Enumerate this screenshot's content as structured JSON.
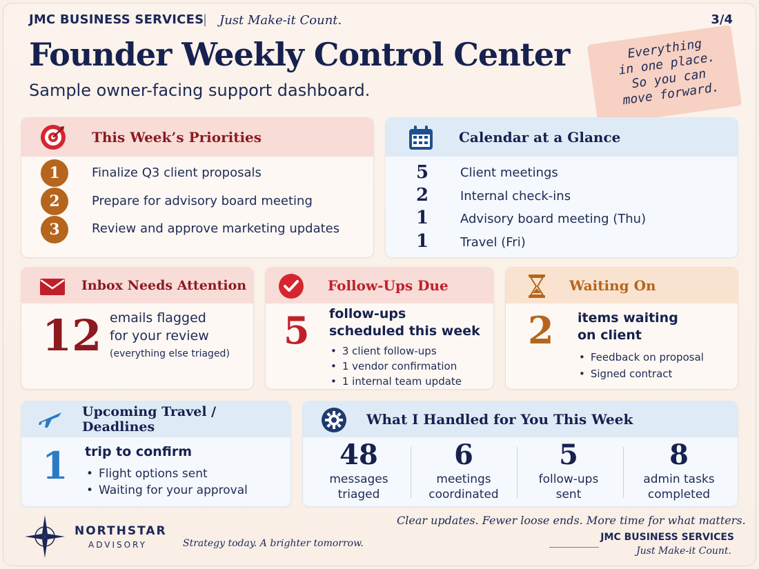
{
  "header": {
    "brand": "JMC BUSINESS SERVICES",
    "separator": "|",
    "tagline": "Just Make-it Count.",
    "page": "3/4",
    "title": "Founder Weekly Control Center",
    "subtitle": "Sample owner-facing support dashboard.",
    "sticky_note": "Everything\nin one place.\nSo you can\nmove forward."
  },
  "priorities": {
    "title": "This Week’s Priorities",
    "icon": "target-icon",
    "items": [
      {
        "num": "1",
        "text": "Finalize Q3 client proposals"
      },
      {
        "num": "2",
        "text": "Prepare for advisory board meeting"
      },
      {
        "num": "3",
        "text": "Review and approve marketing updates"
      }
    ]
  },
  "calendar": {
    "title": "Calendar at a Glance",
    "icon": "calendar-icon",
    "items": [
      {
        "count": "5",
        "text": "Client meetings"
      },
      {
        "count": "2",
        "text": "Internal check-ins"
      },
      {
        "count": "1",
        "text": "Advisory board meeting (Thu)"
      },
      {
        "count": "1",
        "text": "Travel (Fri)"
      }
    ]
  },
  "inbox": {
    "title": "Inbox Needs Attention",
    "icon": "envelope-icon",
    "count": "12",
    "line1": "emails flagged",
    "line2": "for your review",
    "note": "(everything else triaged)"
  },
  "followups": {
    "title": "Follow-Ups Due",
    "icon": "check-circle-icon",
    "count": "5",
    "line1": "follow-ups",
    "line2": "scheduled this week",
    "bullets": [
      "3 client follow-ups",
      "1 vendor confirmation",
      "1 internal team update"
    ]
  },
  "waiting": {
    "title": "Waiting On",
    "icon": "hourglass-icon",
    "count": "2",
    "line1": "items waiting",
    "line2": "on client",
    "bullets": [
      "Feedback on proposal",
      "Signed contract"
    ]
  },
  "travel": {
    "title": "Upcoming Travel / Deadlines",
    "icon": "airplane-icon",
    "count": "1",
    "line1": "trip to confirm",
    "bullets": [
      "Flight options sent",
      "Waiting for your approval"
    ]
  },
  "handled": {
    "title": "What I Handled for You This Week",
    "icon": "gear-icon",
    "stats": [
      {
        "num": "48",
        "label": "messages\ntriaged"
      },
      {
        "num": "6",
        "label": "meetings\ncoordinated"
      },
      {
        "num": "5",
        "label": "follow-ups\nsent"
      },
      {
        "num": "8",
        "label": "admin tasks\ncompleted"
      }
    ]
  },
  "footer": {
    "logo_name": "NORTHSTAR",
    "logo_sub": "ADVISORY",
    "logo_tagline": "Strategy today. A brighter tomorrow.",
    "slogan": "Clear updates. Fewer loose ends. More time for what matters.",
    "brand": "JMC BUSINESS SERVICES",
    "tagline": "Just Make-it Count."
  },
  "colors": {
    "navy": "#17214f",
    "red": "#c0202a",
    "orange": "#b5651d",
    "blue": "#2a7bc4"
  }
}
